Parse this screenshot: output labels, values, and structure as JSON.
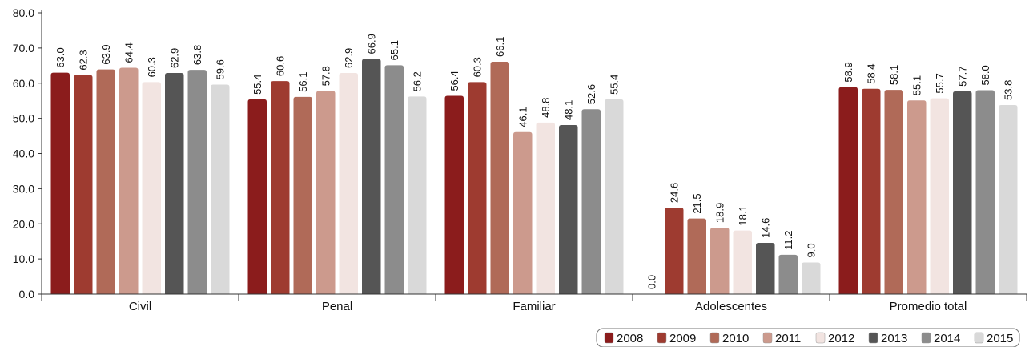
{
  "chart_data": {
    "type": "bar",
    "categories": [
      "Civil",
      "Penal",
      "Familiar",
      "Adolescentes",
      "Promedio total"
    ],
    "series": [
      {
        "name": "2008",
        "color": "#8b1c1c",
        "values": [
          63.0,
          55.4,
          56.4,
          0.0,
          58.9
        ]
      },
      {
        "name": "2009",
        "color": "#9e3b30",
        "values": [
          62.3,
          60.6,
          60.3,
          24.6,
          58.4
        ]
      },
      {
        "name": "2010",
        "color": "#b06a58",
        "values": [
          63.9,
          56.1,
          66.1,
          21.5,
          58.1
        ]
      },
      {
        "name": "2011",
        "color": "#cc9a8d",
        "values": [
          64.4,
          57.8,
          46.1,
          18.9,
          55.1
        ]
      },
      {
        "name": "2012",
        "color": "#f2e4e1",
        "values": [
          60.3,
          62.9,
          48.8,
          18.1,
          55.7
        ]
      },
      {
        "name": "2013",
        "color": "#555555",
        "values": [
          62.9,
          66.9,
          48.1,
          14.6,
          57.7
        ]
      },
      {
        "name": "2014",
        "color": "#8c8c8c",
        "values": [
          63.8,
          65.1,
          52.6,
          11.2,
          58.0
        ]
      },
      {
        "name": "2015",
        "color": "#d9d9d9",
        "values": [
          59.6,
          56.2,
          55.4,
          9.0,
          53.8
        ]
      }
    ],
    "ylim": [
      0,
      80
    ],
    "yticks": [
      "0.0",
      "10.0",
      "20.0",
      "30.0",
      "40.0",
      "50.0",
      "60.0",
      "70.0",
      "80.0"
    ],
    "data_labels": [
      [
        "63.0",
        "62.3",
        "63.9",
        "64.4",
        "60.3",
        "62.9",
        "63.8",
        "59.6"
      ],
      [
        "55.4",
        "60.6",
        "56.1",
        "57.8",
        "62.9",
        "66.9",
        "65.1",
        "56.2"
      ],
      [
        "56.4",
        "60.3",
        "66.1",
        "46.1",
        "48.8",
        "48.1",
        "52.6",
        "55.4"
      ],
      [
        "0.0",
        "24.6",
        "21.5",
        "18.9",
        "18.1",
        "14.6",
        "11.2",
        "9.0"
      ],
      [
        "58.9",
        "58.4",
        "58.1",
        "55.1",
        "55.7",
        "57.7",
        "58.0",
        "53.8"
      ]
    ],
    "legend": [
      "2008",
      "2009",
      "2010",
      "2011",
      "2012",
      "2013",
      "2014",
      "2015"
    ],
    "legend_position": "bottom-right",
    "grid": false,
    "title": "",
    "xlabel": "",
    "ylabel": ""
  }
}
